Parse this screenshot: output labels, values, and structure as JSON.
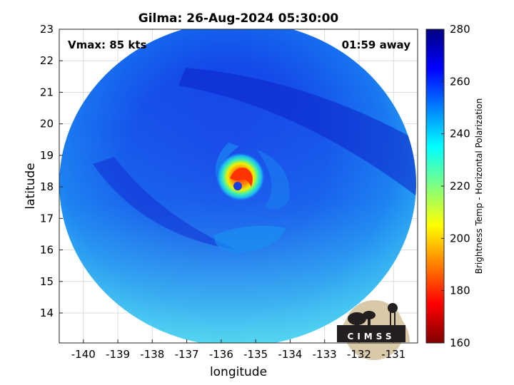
{
  "title": "Gilma: 26-Aug-2024 05:30:00",
  "annotations": {
    "vmax": "Vmax: 85 kts",
    "time_away": "01:59 away"
  },
  "xaxis": {
    "label": "longitude",
    "range": [
      -140.7,
      -130.3
    ],
    "ticks": [
      -140,
      -139,
      -138,
      -137,
      -136,
      -135,
      -134,
      -133,
      -132,
      -131
    ]
  },
  "yaxis": {
    "label": "latitude",
    "range": [
      13.05,
      23
    ],
    "ticks": [
      14,
      15,
      16,
      17,
      18,
      19,
      20,
      21,
      22,
      23
    ]
  },
  "colorbar": {
    "label": "Brightness Temp - Horizontal Polarization",
    "range": [
      160,
      280
    ],
    "ticks": [
      160,
      180,
      200,
      220,
      240,
      260,
      280
    ],
    "colormap": "jet"
  },
  "swath": {
    "center": [
      -135.5,
      18.1
    ],
    "eye_center": [
      -135.35,
      18.05
    ],
    "min_brightness_temp": 180
  },
  "logo": {
    "text": "CIMSS"
  }
}
